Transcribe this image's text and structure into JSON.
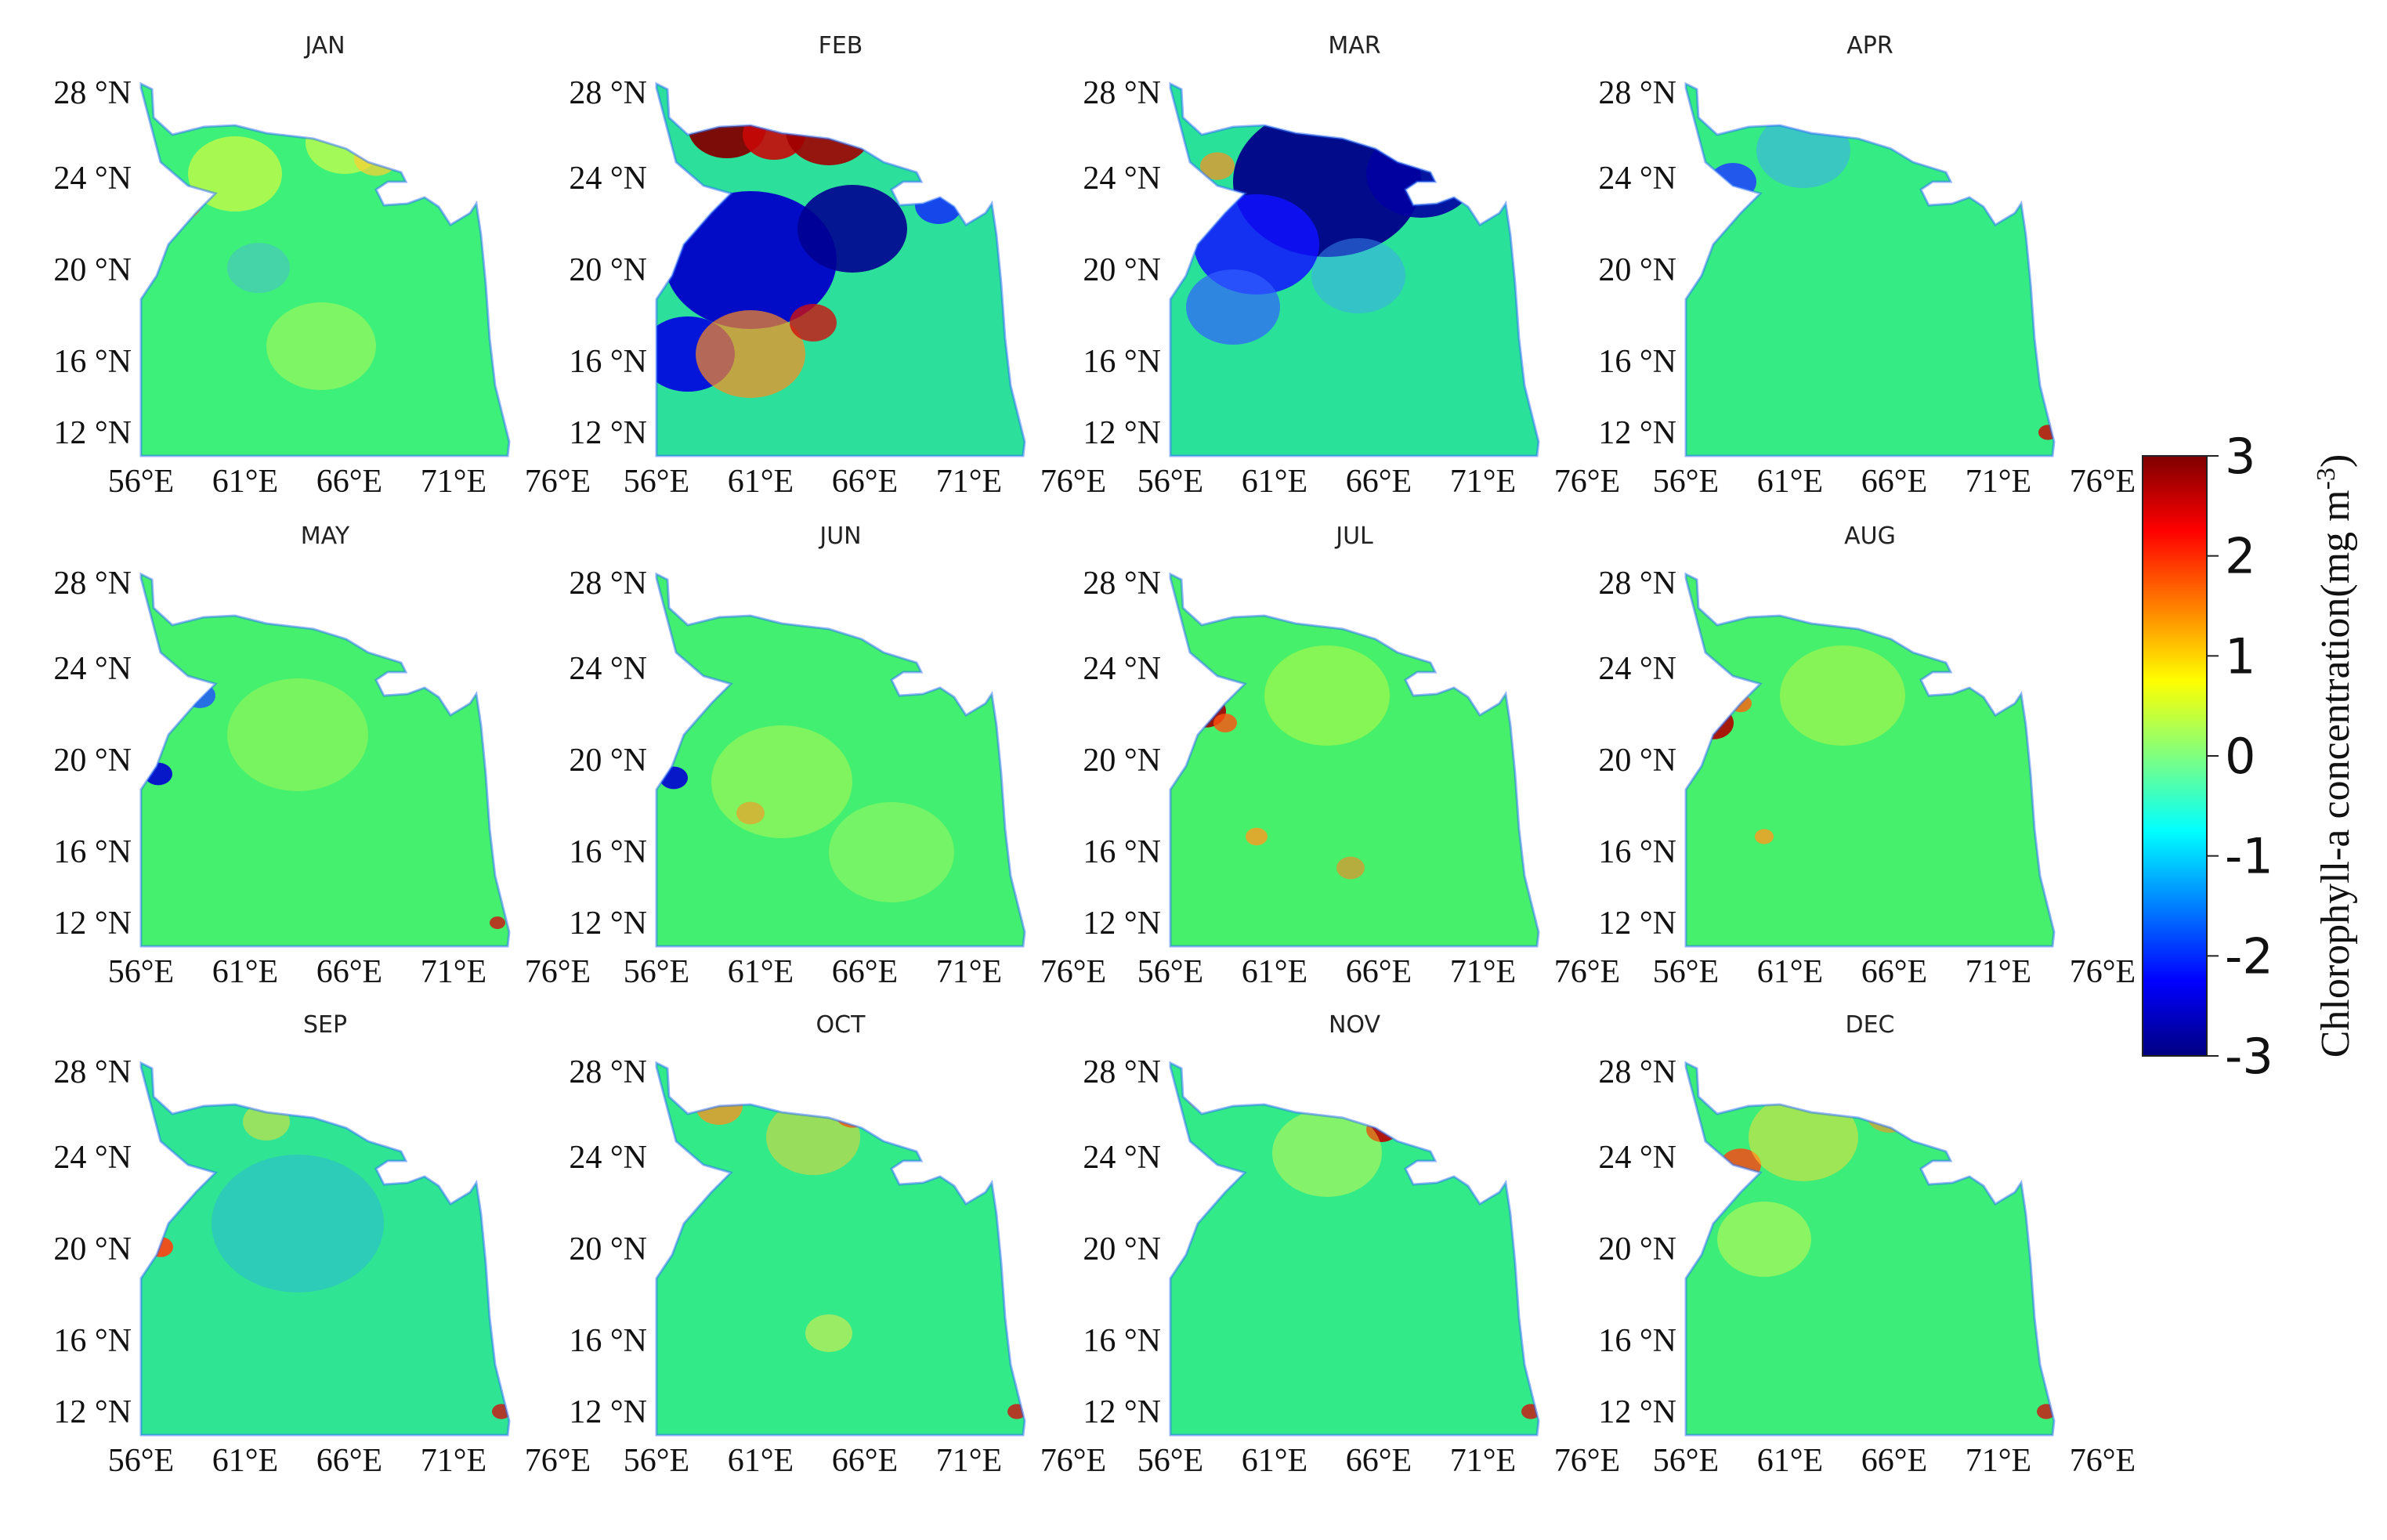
{
  "months": [
    "JAN",
    "FEB",
    "MAR",
    "APR",
    "MAY",
    "JUN",
    "JUL",
    "AUG",
    "SEP",
    "OCT",
    "NOV",
    "DEC"
  ],
  "lat_ticks": [
    "28 °N",
    "24 °N",
    "20 °N",
    "16 °N",
    "12 °N"
  ],
  "lon_ticks": [
    "56°E",
    "61°E",
    "66°E",
    "71°E",
    "76°E"
  ],
  "colorbar": {
    "min": -3,
    "max": 3,
    "ticks": [
      "3",
      "2",
      "1",
      "0",
      "-1",
      "-2",
      "-3"
    ],
    "label": "Chlorophyll-a concentration(mg m",
    "label_superscript": "-3",
    "label_suffix": ")",
    "colormap": [
      "#00007f",
      "#0000ff",
      "#007fff",
      "#00ffff",
      "#7fff7f",
      "#ffff00",
      "#ff7f00",
      "#ff0000",
      "#7f0000"
    ]
  },
  "map_extent": {
    "lon": [
      56,
      76
    ],
    "lat": [
      12,
      28
    ]
  },
  "fill_colors": {
    "JAN": "#3cf07a",
    "FEB": "#2cdf9a",
    "MAR": "#2ae19a",
    "APR": "#34ec83",
    "MAY": "#44f06e",
    "JUN": "#43ef70",
    "JUL": "#46f06b",
    "AUG": "#46ef6c",
    "SEP": "#2fe492",
    "OCT": "#33ea88",
    "NOV": "#33ea88",
    "DEC": "#3ced7a"
  }
}
